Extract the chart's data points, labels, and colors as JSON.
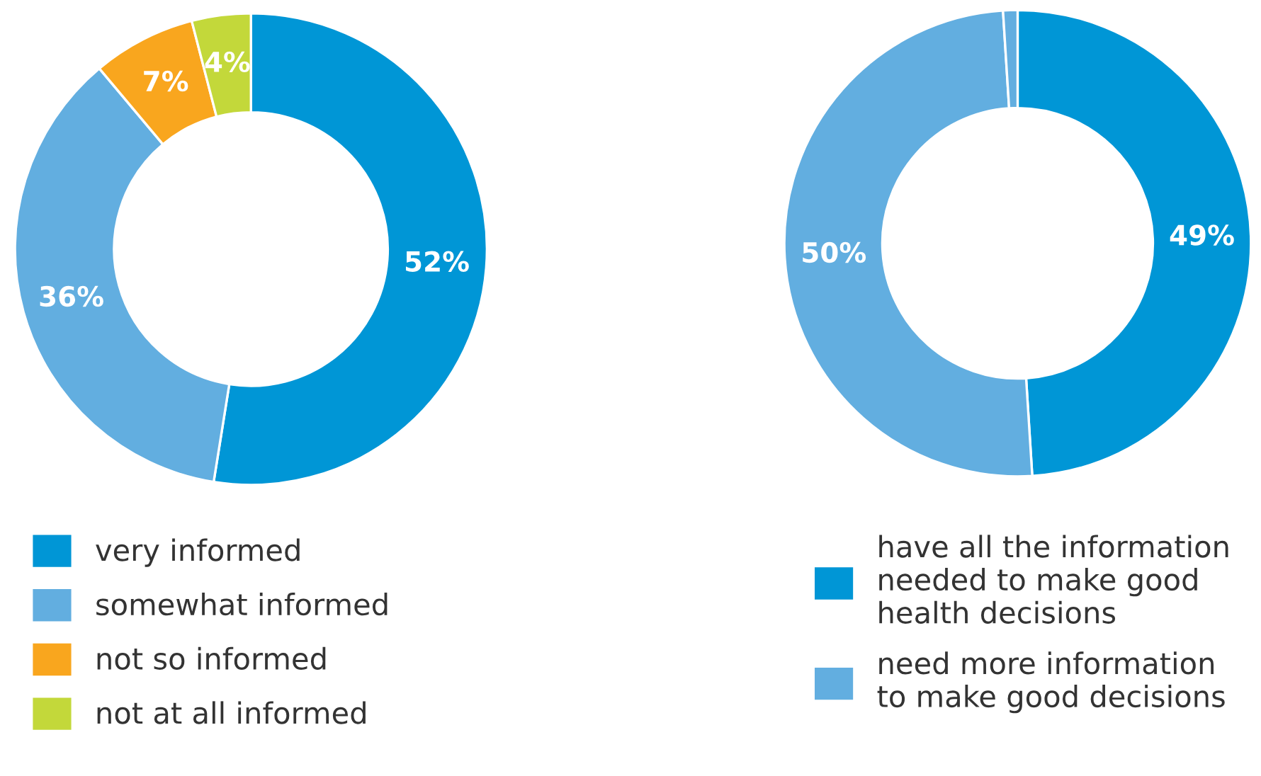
{
  "chart_data": [
    {
      "type": "donut",
      "categories": [
        "very informed",
        "somewhat informed",
        "not so informed",
        "not at all informed"
      ],
      "values": [
        52,
        36,
        7,
        4
      ],
      "colors": [
        "#0096d6",
        "#62aee0",
        "#f9a61e",
        "#c3d83a"
      ],
      "value_labels": [
        "52%",
        "36%",
        "7%",
        "4%"
      ],
      "legend": "bottom"
    },
    {
      "type": "donut",
      "categories": [
        "have all the information\nneeded to make good\nhealth decisions",
        "need more information\nto make good decisions",
        null
      ],
      "values": [
        49,
        50,
        1
      ],
      "colors": [
        "#0096d6",
        "#62aee0",
        "#62aee0"
      ],
      "value_labels": [
        "49%",
        "50%",
        null
      ],
      "legend": "bottom"
    }
  ]
}
